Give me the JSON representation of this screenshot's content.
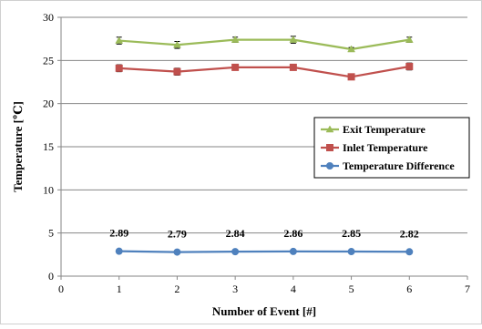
{
  "chart_data": {
    "type": "line",
    "xlabel": "Number of Event [#]",
    "ylabel": "Temperature [℃]",
    "xlim": [
      0,
      7
    ],
    "ylim": [
      0,
      30
    ],
    "x_ticks": [
      "0",
      "1",
      "2",
      "3",
      "4",
      "5",
      "6",
      "7"
    ],
    "y_ticks": [
      "0",
      "5",
      "10",
      "15",
      "20",
      "25",
      "30"
    ],
    "x_tick_values": [
      0,
      1,
      2,
      3,
      4,
      5,
      6,
      7
    ],
    "y_tick_values": [
      0,
      5,
      10,
      15,
      20,
      25,
      30
    ],
    "grid": "horizontal",
    "legend_position": "right",
    "x": [
      1,
      2,
      3,
      4,
      5,
      6
    ],
    "series": [
      {
        "name": "Exit Temperature",
        "values": [
          27.3,
          26.8,
          27.4,
          27.4,
          26.3,
          27.4
        ],
        "errors": [
          0.4,
          0.4,
          0.3,
          0.4,
          0.2,
          0.3
        ],
        "marker": "triangle",
        "color": "#9bbb59"
      },
      {
        "name": "Inlet Temperature",
        "values": [
          24.1,
          23.7,
          24.2,
          24.2,
          23.1,
          24.3
        ],
        "errors": [
          0.4,
          0.4,
          0.3,
          0.3,
          0.2,
          0.4
        ],
        "marker": "square",
        "color": "#c0504d"
      },
      {
        "name": "Temperature Difference",
        "values": [
          2.89,
          2.79,
          2.84,
          2.86,
          2.85,
          2.82
        ],
        "marker": "circle",
        "color": "#4f81bd",
        "data_labels": [
          "2.89",
          "2.79",
          "2.84",
          "2.86",
          "2.85",
          "2.82"
        ]
      }
    ]
  }
}
